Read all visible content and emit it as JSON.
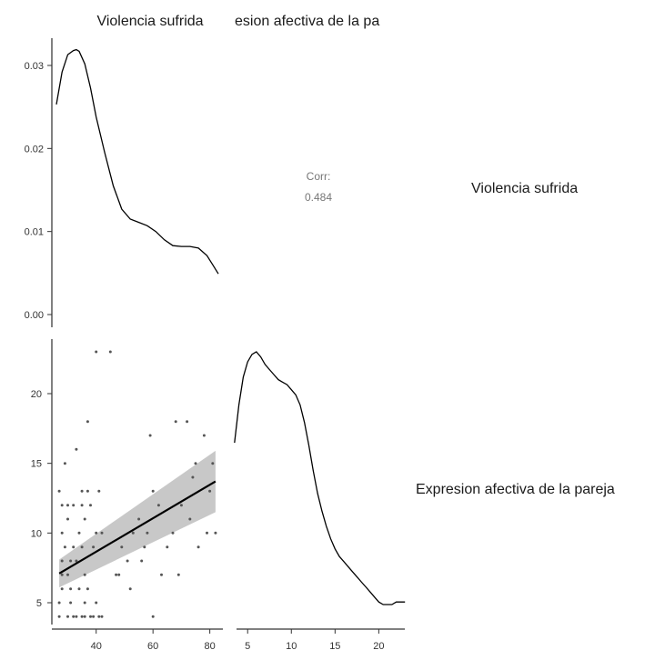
{
  "chart_data": {
    "type": "pairs",
    "variables": [
      "Violencia sufrida",
      "Expresion afectiva de la pareja"
    ],
    "column_headers": [
      "Violencia sufrida",
      "esion afectiva de la pa"
    ],
    "row_labels": [
      "Violencia sufrida",
      "Expresion afectiva de la pareja"
    ],
    "correlation": {
      "label": "Corr:",
      "value": "0.484"
    },
    "panels": {
      "density_violencia": {
        "type": "line",
        "xlim": [
          26,
          83
        ],
        "ylim": [
          0,
          0.033
        ],
        "yticks": [
          0.0,
          0.01,
          0.02,
          0.03
        ],
        "ytick_labels": [
          "0.00",
          "0.01",
          "0.02",
          "0.03"
        ],
        "x": [
          26,
          28,
          30,
          32,
          33,
          34,
          36,
          38,
          40,
          43,
          46,
          49,
          52,
          55,
          58,
          61,
          64,
          67,
          70,
          73,
          76,
          79,
          81,
          83
        ],
        "y": [
          0.0253,
          0.0292,
          0.0313,
          0.0318,
          0.0319,
          0.0317,
          0.0302,
          0.0273,
          0.0238,
          0.0195,
          0.0155,
          0.0127,
          0.0115,
          0.0111,
          0.0107,
          0.01,
          0.009,
          0.0083,
          0.0082,
          0.0082,
          0.008,
          0.0071,
          0.006,
          0.0049
        ]
      },
      "scatter": {
        "type": "scatter",
        "xlim": [
          26,
          83
        ],
        "ylim": [
          3,
          24.5
        ],
        "xticks": [
          40,
          60,
          80
        ],
        "xtick_labels": [
          "40",
          "60",
          "80"
        ],
        "yticks": [
          5,
          10,
          15,
          20
        ],
        "ytick_labels": [
          "5",
          "10",
          "15",
          "20"
        ],
        "x": [
          27,
          27,
          27,
          28,
          28,
          28,
          28,
          28,
          29,
          29,
          30,
          30,
          30,
          30,
          31,
          31,
          31,
          32,
          32,
          32,
          33,
          33,
          33,
          34,
          34,
          35,
          35,
          35,
          35,
          36,
          36,
          36,
          36,
          37,
          37,
          37,
          38,
          38,
          39,
          39,
          40,
          40,
          40,
          41,
          41,
          42,
          42,
          45,
          47,
          48,
          49,
          51,
          52,
          53,
          55,
          56,
          57,
          58,
          59,
          60,
          60,
          62,
          63,
          65,
          67,
          68,
          69,
          70,
          72,
          73,
          74,
          75,
          76,
          78,
          79,
          80,
          81,
          82
        ],
        "y": [
          4,
          13,
          5,
          8,
          12,
          7,
          6,
          10,
          15,
          9,
          7,
          12,
          4,
          11,
          8,
          6,
          5,
          12,
          9,
          4,
          16,
          8,
          4,
          10,
          6,
          13,
          12,
          9,
          4,
          11,
          5,
          4,
          7,
          18,
          6,
          13,
          12,
          4,
          4,
          9,
          23,
          10,
          5,
          13,
          4,
          4,
          10,
          23,
          7,
          7,
          9,
          8,
          6,
          10,
          11,
          8,
          9,
          10,
          17,
          4,
          13,
          12,
          7,
          9,
          10,
          18,
          7,
          12,
          18,
          11,
          14,
          15,
          9,
          17,
          10,
          13,
          15,
          10
        ],
        "regression": {
          "x": [
            27,
            82
          ],
          "y": [
            7.1,
            13.7
          ],
          "ci_low": [
            6.1,
            11.5
          ],
          "ci_high": [
            8.1,
            15.9
          ]
        }
      },
      "density_expresion": {
        "type": "line",
        "xlim": [
          3,
          23.5
        ],
        "xticks": [
          5,
          10,
          15,
          20
        ],
        "xtick_labels": [
          "5",
          "10",
          "15",
          "20"
        ],
        "x": [
          3.5,
          4,
          4.5,
          5,
          5.5,
          6,
          6.5,
          7,
          7.5,
          8,
          8.5,
          9,
          9.5,
          10,
          10.5,
          11,
          11.5,
          12,
          12.5,
          13,
          13.5,
          14,
          14.5,
          15,
          15.5,
          16,
          16.5,
          17,
          17.5,
          18,
          18.5,
          19,
          19.5,
          20,
          20.5,
          21,
          21.5,
          22,
          22.5,
          23
        ],
        "y": [
          0.64,
          0.79,
          0.9,
          0.96,
          0.99,
          1.0,
          0.98,
          0.95,
          0.93,
          0.91,
          0.89,
          0.88,
          0.87,
          0.85,
          0.83,
          0.79,
          0.72,
          0.63,
          0.53,
          0.44,
          0.37,
          0.31,
          0.26,
          0.22,
          0.19,
          0.17,
          0.15,
          0.13,
          0.11,
          0.09,
          0.07,
          0.05,
          0.03,
          0.01,
          0.0,
          0.0,
          0.0,
          0.01,
          0.01,
          0.01
        ]
      }
    }
  }
}
